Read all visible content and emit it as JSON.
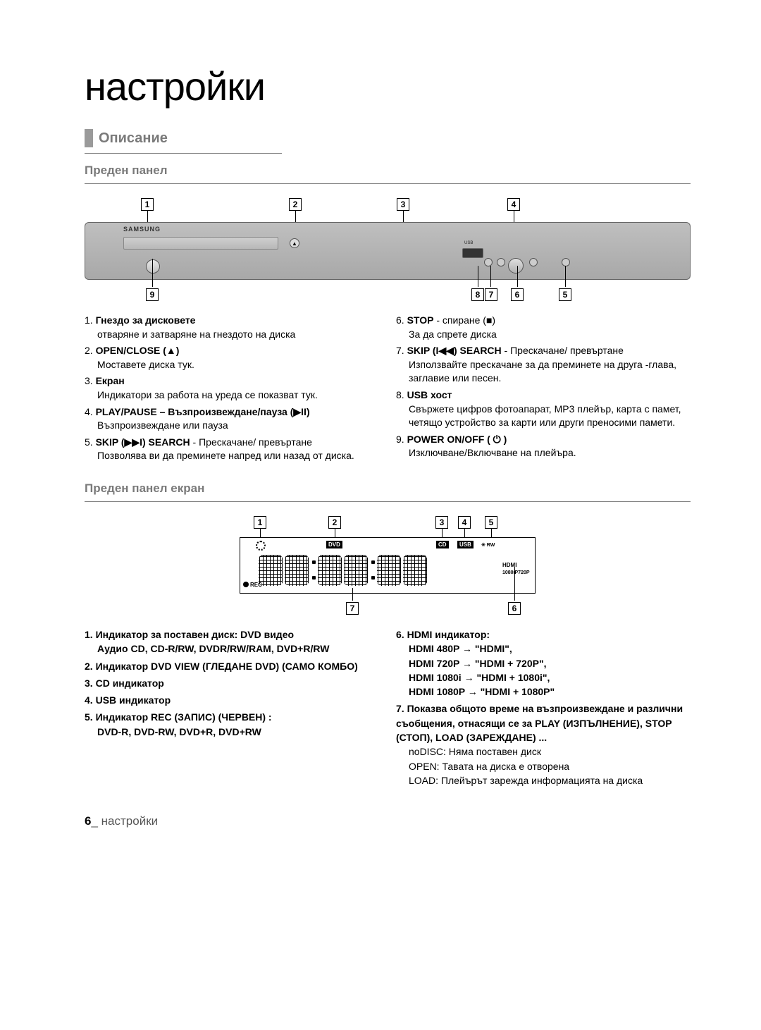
{
  "page": {
    "title": "настройки",
    "section": "Описание",
    "sub1": "Преден панел",
    "sub2": "Преден панел екран",
    "footer_num": "6",
    "footer_sep": "_",
    "footer_text": "настройки"
  },
  "style": {
    "page_title_fontsize": 56,
    "section_bar_color": "#9a9a9a",
    "section_title_color": "#7a7a7a",
    "underline_color": "#808080",
    "body_fontsize": 14,
    "device_gradient_top": "#bfbfbf",
    "device_gradient_bottom": "#a8a8a8",
    "callout_box_size": 18,
    "display_width": 420,
    "display_height": 80
  },
  "callouts_top": [
    "1",
    "2",
    "3",
    "4"
  ],
  "callouts_bottom": [
    "9",
    "8",
    "7",
    "6",
    "5"
  ],
  "panel_left": [
    {
      "num": "1.",
      "title": "Гнездо за дисковете",
      "desc": "отваряне и затваряне на гнездото на диска"
    },
    {
      "num": "2.",
      "title": "OPEN/CLOSE   (▲)",
      "desc": "Моставете диска тук."
    },
    {
      "num": "3.",
      "title": "Екран",
      "desc": "Индикатори за работа на уреда се показват тук."
    },
    {
      "num": "4.",
      "title": "PLAY/PAUSE – Възпроизвеждане/пауза (▶II)",
      "desc": "Възпроизвеждане или пауза"
    },
    {
      "num": "5.",
      "title": "SKIP (▶▶I) SEARCH",
      "tail": " - Прескачане/ превъртане",
      "desc": "Позволява ви да преминете напред или назад от диска."
    }
  ],
  "panel_right": [
    {
      "num": "6.",
      "title": "STOP",
      "tail": " - спиране (■)",
      "desc": "За да спрете диска"
    },
    {
      "num": "7.",
      "title": "SKIP (I◀◀) SEARCH",
      "tail": " - Прескачане/ превъртане",
      "desc": "Използвайте прескачане за да преминете на друга -глава, заглавие или песен."
    },
    {
      "num": "8.",
      "title": "USB хост",
      "desc": "Свържете цифров фотоапарат, MP3 плейър, карта с памет, четящо устройство за карти или други преносими памети."
    },
    {
      "num": "9.",
      "title": "POWER ON/OFF ( ⏻ )",
      "desc": "Изключване/Включване на плейъра."
    }
  ],
  "display": {
    "callouts_top": [
      "1",
      "2",
      "3",
      "4",
      "5"
    ],
    "callouts_bottom": [
      "7",
      "6"
    ],
    "tag_dvd": "DVD",
    "tag_cd": "CD",
    "tag_usb": "USB",
    "tag_rw": "✳ RW",
    "tag_hdmi": "HDMI",
    "tag_res": "1080iP720P",
    "tag_rec": "REC"
  },
  "disp_left": [
    {
      "num": "1.",
      "bold": "Индикатор за поставен диск: DVD видео",
      "lines": [
        "Аудио CD, CD-R/RW, DVDR/RW/RAM, DVD+R/RW"
      ]
    },
    {
      "num": "2.",
      "bold": "Индикатор DVD VIEW (ГЛЕДАНЕ DVD) (САМО КОМБО)",
      "lines": []
    },
    {
      "num": "3.",
      "bold": "CD индикатор",
      "lines": []
    },
    {
      "num": "4.",
      "bold": "USB индикатор",
      "lines": []
    },
    {
      "num": "5.",
      "bold": "Индикатор REC (ЗАПИС) (ЧЕРВЕН) :",
      "lines": [
        "DVD-R, DVD-RW, DVD+R, DVD+RW"
      ]
    }
  ],
  "disp_right": [
    {
      "num": "6.",
      "bold": "HDMI индикатор:",
      "lines": [
        "HDMI 480P → \"HDMI\",",
        "HDMI 720P → \"HDMI + 720P\",",
        "HDMI 1080i → \"HDMI + 1080i\",",
        "HDMI 1080P → \"HDMI + 1080P\""
      ]
    },
    {
      "num": "7.",
      "bold": "Показва общото време на възпроизвеждане и различни съобщения, отнасящи се за PLAY (ИЗПЪЛНЕНИЕ), STOP (СТОП), LOAD (ЗАРЕЖДАНЕ) ...",
      "lines_plain": [
        "noDISC: Няма поставен диск",
        "OPEN: Тавата на диска е отворена",
        "LOAD: Плейърът зарежда информацията на диска"
      ]
    }
  ]
}
